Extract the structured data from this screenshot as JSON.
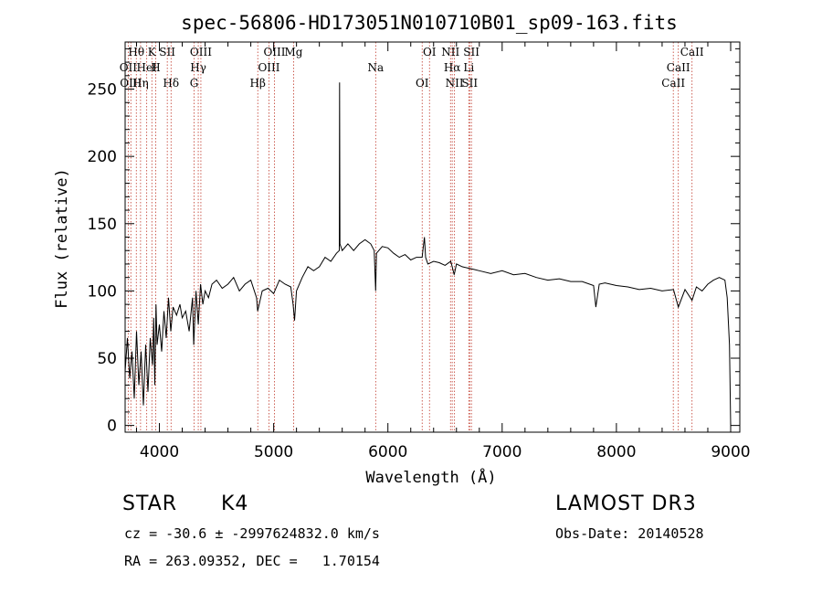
{
  "chart_data": {
    "type": "line",
    "title": "spec-56806-HD173051N010710B01_sp09-163.fits",
    "xlabel": "Wavelength (Å)",
    "ylabel": "Flux (relative)",
    "xlim": [
      3700,
      9080
    ],
    "ylim": [
      -5,
      285
    ],
    "x_ticks": [
      4000,
      5000,
      6000,
      7000,
      8000,
      9000
    ],
    "y_ticks": [
      0,
      50,
      100,
      150,
      200,
      250
    ],
    "grid": false,
    "series": [
      {
        "name": "flux",
        "x": [
          3700,
          3720,
          3740,
          3760,
          3780,
          3800,
          3820,
          3840,
          3860,
          3880,
          3900,
          3920,
          3940,
          3950,
          3960,
          3970,
          3980,
          4000,
          4020,
          4040,
          4060,
          4080,
          4100,
          4120,
          4150,
          4180,
          4200,
          4230,
          4260,
          4290,
          4300,
          4320,
          4340,
          4360,
          4380,
          4400,
          4430,
          4460,
          4500,
          4550,
          4600,
          4650,
          4700,
          4750,
          4800,
          4850,
          4860,
          4900,
          4950,
          5000,
          5050,
          5100,
          5150,
          5170,
          5183,
          5200,
          5250,
          5300,
          5350,
          5400,
          5450,
          5500,
          5550,
          5575,
          5577,
          5580,
          5600,
          5650,
          5700,
          5750,
          5800,
          5850,
          5880,
          5893,
          5900,
          5950,
          6000,
          6050,
          6100,
          6150,
          6200,
          6250,
          6300,
          6320,
          6330,
          6350,
          6400,
          6450,
          6500,
          6550,
          6563,
          6580,
          6600,
          6650,
          6700,
          6750,
          6800,
          6900,
          7000,
          7100,
          7200,
          7300,
          7400,
          7500,
          7600,
          7700,
          7800,
          7820,
          7850,
          7900,
          8000,
          8100,
          8200,
          8300,
          8400,
          8500,
          8542,
          8600,
          8662,
          8700,
          8750,
          8800,
          8850,
          8900,
          8950,
          8970,
          8990,
          9000
        ],
        "y": [
          40,
          65,
          35,
          55,
          20,
          70,
          30,
          55,
          15,
          60,
          25,
          65,
          45,
          80,
          30,
          90,
          60,
          75,
          55,
          85,
          65,
          95,
          70,
          88,
          82,
          90,
          80,
          85,
          70,
          95,
          60,
          100,
          75,
          105,
          90,
          100,
          95,
          105,
          108,
          102,
          105,
          110,
          100,
          105,
          108,
          95,
          85,
          100,
          102,
          98,
          108,
          105,
          103,
          90,
          78,
          100,
          110,
          118,
          115,
          118,
          125,
          122,
          128,
          130,
          255,
          135,
          130,
          135,
          130,
          135,
          138,
          135,
          130,
          100,
          128,
          133,
          132,
          128,
          125,
          127,
          123,
          125,
          125,
          140,
          125,
          120,
          122,
          121,
          119,
          122,
          118,
          112,
          120,
          118,
          117,
          116,
          115,
          113,
          115,
          112,
          113,
          110,
          108,
          109,
          107,
          107,
          104,
          88,
          105,
          106,
          104,
          103,
          101,
          102,
          100,
          101,
          88,
          101,
          93,
          103,
          100,
          105,
          108,
          110,
          108,
          95,
          60,
          0
        ]
      }
    ],
    "annotations": [
      {
        "label": "Hθ",
        "wavelength": 3798
      },
      {
        "label": "OII",
        "wavelength": 3727
      },
      {
        "label": "OIII",
        "wavelength": 3750
      },
      {
        "label": "K",
        "wavelength": 3934
      },
      {
        "label": "HeI",
        "wavelength": 3889
      },
      {
        "label": "Hη",
        "wavelength": 3835
      },
      {
        "label": "SII",
        "wavelength": 4069
      },
      {
        "label": "H",
        "wavelength": 3968
      },
      {
        "label": "Hδ",
        "wavelength": 4102
      },
      {
        "label": "OIII",
        "wavelength": 4363
      },
      {
        "label": "Hγ",
        "wavelength": 4340
      },
      {
        "label": "G",
        "wavelength": 4304
      },
      {
        "label": "OIII",
        "wavelength": 5007
      },
      {
        "label": "OIII",
        "wavelength": 4959
      },
      {
        "label": "Hβ",
        "wavelength": 4861
      },
      {
        "label": "Mg",
        "wavelength": 5175
      },
      {
        "label": "Na",
        "wavelength": 5893
      },
      {
        "label": "OI",
        "wavelength": 6300
      },
      {
        "label": "OI",
        "wavelength": 6364
      },
      {
        "label": "Hα",
        "wavelength": 6563
      },
      {
        "label": "SII",
        "wavelength": 6716
      },
      {
        "label": "NII",
        "wavelength": 6548
      },
      {
        "label": "Li",
        "wavelength": 6708
      },
      {
        "label": "NII",
        "wavelength": 6583
      },
      {
        "label": "SII",
        "wavelength": 6731
      },
      {
        "label": "CaII",
        "wavelength": 8542
      },
      {
        "label": "CaII",
        "wavelength": 8498
      },
      {
        "label": "CaII",
        "wavelength": 8662
      }
    ]
  },
  "info": {
    "object_class": "STAR",
    "subclass": "K4",
    "survey": "LAMOST DR3",
    "cz": "cz = -30.6 ± -2997624832.0 km/s",
    "obs_date": "Obs-Date: 20140528",
    "radec": "RA = 263.09352, DEC =   1.70154"
  },
  "colors": {
    "line": "#000000",
    "marker_line": "#c0392b"
  }
}
